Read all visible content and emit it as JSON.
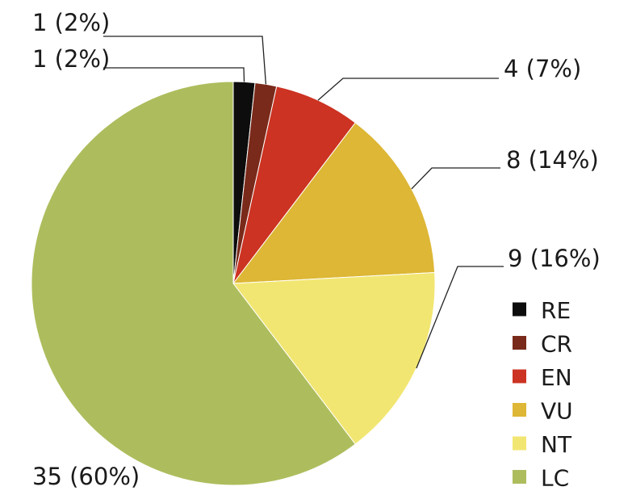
{
  "chart_data": {
    "type": "pie",
    "title": "",
    "slices": [
      {
        "category": "RE",
        "value": 1,
        "label": "1 (2%)",
        "color": "#0d0d0d"
      },
      {
        "category": "CR",
        "value": 1,
        "label": "1 (2%)",
        "color": "#7a2a1a"
      },
      {
        "category": "EN",
        "value": 4,
        "label": "4 (7%)",
        "color": "#cc3322"
      },
      {
        "category": "VU",
        "value": 8,
        "label": "8 (14%)",
        "color": "#ddb735"
      },
      {
        "category": "NT",
        "value": 9,
        "label": "9 (16%)",
        "color": "#f2e672"
      },
      {
        "category": "LC",
        "value": 35,
        "label": "35 (60%)",
        "color": "#adbd5d"
      }
    ],
    "legend": {
      "position": "right-bottom"
    }
  }
}
